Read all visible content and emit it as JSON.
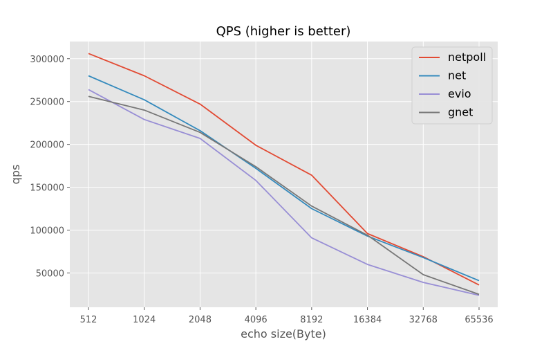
{
  "chart_data": {
    "type": "line",
    "title": "QPS (higher is better)",
    "xlabel": "echo size(Byte)",
    "ylabel": "qps",
    "categories": [
      "512",
      "1024",
      "2048",
      "4096",
      "8192",
      "16384",
      "32768",
      "65536"
    ],
    "ylim": [
      10000,
      320000
    ],
    "yticks": [
      50000,
      100000,
      150000,
      200000,
      250000,
      300000
    ],
    "grid": true,
    "legend_position": "top-right",
    "series": [
      {
        "name": "netpoll",
        "color": "#E24A33",
        "values": [
          306000,
          280000,
          247000,
          199000,
          164000,
          96000,
          69000,
          36000
        ]
      },
      {
        "name": "net",
        "color": "#348ABD",
        "values": [
          280000,
          252000,
          216000,
          172000,
          125000,
          93000,
          68000,
          41000
        ]
      },
      {
        "name": "evio",
        "color": "#988ED5",
        "values": [
          264000,
          229000,
          207000,
          158000,
          91000,
          60000,
          39000,
          24000
        ]
      },
      {
        "name": "gnet",
        "color": "#777777",
        "values": [
          256000,
          240000,
          214000,
          174000,
          128000,
          94000,
          48000,
          25000
        ]
      }
    ]
  }
}
